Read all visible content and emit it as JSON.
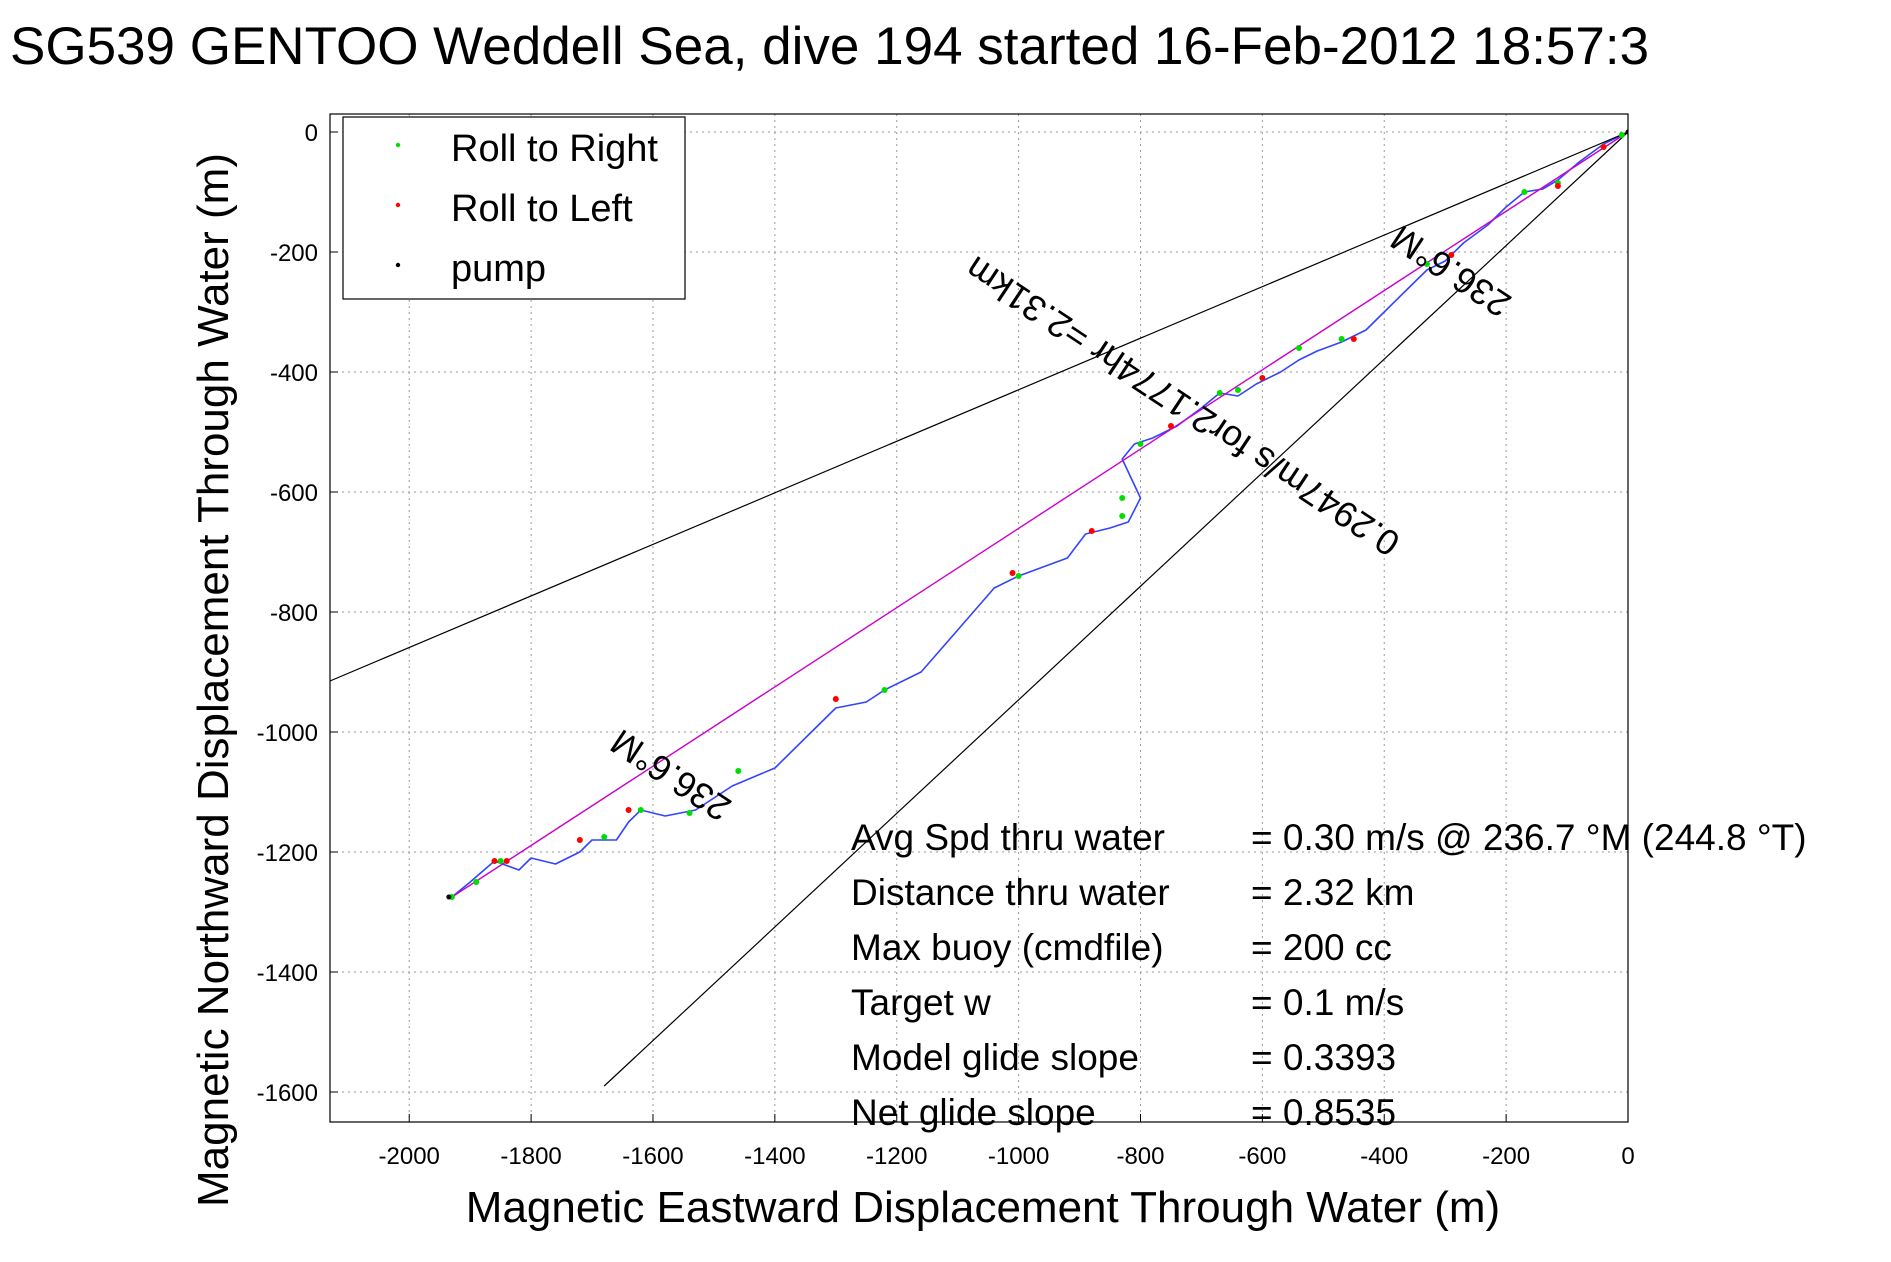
{
  "chart_data": {
    "type": "line",
    "title": "SG539 GENTOO Weddell Sea, dive 194 started 16-Feb-2012 18:57:3",
    "xlabel": "Magnetic Eastward Displacement Through Water (m)",
    "ylabel": "Magnetic Northward Displacement Through Water (m)",
    "xlim": [
      -2130,
      0
    ],
    "ylim": [
      -1650,
      30
    ],
    "xticks": [
      -2000,
      -1800,
      -1600,
      -1400,
      -1200,
      -1000,
      -800,
      -600,
      -400,
      -200,
      0
    ],
    "yticks": [
      0,
      -200,
      -400,
      -600,
      -800,
      -1000,
      -1200,
      -1400,
      -1600
    ],
    "grid": true,
    "legend_position": "top-left",
    "legend": [
      {
        "label": "Roll to Right",
        "color": "#00dd00"
      },
      {
        "label": "Roll to Left",
        "color": "#ff0000"
      },
      {
        "label": "pump",
        "color": "#000000"
      }
    ],
    "colors": {
      "track": "#3344ff",
      "heading": "#cc00cc",
      "cone": "#000000"
    },
    "series": [
      {
        "role": "track",
        "x": [
          0,
          -40,
          -80,
          -115,
          -140,
          -170,
          -200,
          -230,
          -270,
          -300,
          -330,
          -360,
          -400,
          -430,
          -470,
          -510,
          -540,
          -570,
          -610,
          -640,
          -670,
          -700,
          -740,
          -780,
          -810,
          -830,
          -800,
          -820,
          -850,
          -890,
          -920,
          -1000,
          -1040,
          -1100,
          -1160,
          -1220,
          -1250,
          -1300,
          -1340,
          -1400,
          -1470,
          -1530,
          -1580,
          -1620,
          -1640,
          -1660,
          -1700,
          -1720,
          -1760,
          -1800,
          -1820,
          -1860,
          -1900,
          -1930
        ],
        "y": [
          0,
          -20,
          -50,
          -80,
          -95,
          -100,
          -125,
          -155,
          -185,
          -215,
          -230,
          -260,
          -300,
          -330,
          -350,
          -365,
          -380,
          -400,
          -420,
          -440,
          -435,
          -460,
          -490,
          -510,
          -520,
          -545,
          -610,
          -650,
          -660,
          -670,
          -710,
          -740,
          -760,
          -830,
          -900,
          -930,
          -950,
          -960,
          -1000,
          -1060,
          -1090,
          -1130,
          -1140,
          -1130,
          -1150,
          -1180,
          -1180,
          -1200,
          -1220,
          -1210,
          -1230,
          -1215,
          -1250,
          -1275
        ]
      },
      {
        "role": "heading-line",
        "x": [
          0,
          -1930
        ],
        "y": [
          0,
          -1275
        ]
      },
      {
        "role": "cone-upper",
        "x": [
          0,
          -2130
        ],
        "y": [
          0,
          -915
        ]
      },
      {
        "role": "cone-lower",
        "x": [
          0,
          -1680
        ],
        "y": [
          0,
          -1590
        ]
      }
    ],
    "roll_right_points": [
      [
        -10,
        -5
      ],
      [
        -115,
        -85
      ],
      [
        -170,
        -100
      ],
      [
        -330,
        -220
      ],
      [
        -470,
        -345
      ],
      [
        -540,
        -360
      ],
      [
        -640,
        -430
      ],
      [
        -670,
        -435
      ],
      [
        -800,
        -520
      ],
      [
        -830,
        -610
      ],
      [
        -830,
        -640
      ],
      [
        -1000,
        -740
      ],
      [
        -1220,
        -930
      ],
      [
        -1460,
        -1065
      ],
      [
        -1540,
        -1135
      ],
      [
        -1620,
        -1130
      ],
      [
        -1680,
        -1175
      ],
      [
        -1850,
        -1215
      ],
      [
        -1890,
        -1250
      ],
      [
        -1930,
        -1275
      ]
    ],
    "roll_left_points": [
      [
        -40,
        -25
      ],
      [
        -115,
        -90
      ],
      [
        -290,
        -205
      ],
      [
        -450,
        -345
      ],
      [
        -600,
        -410
      ],
      [
        -750,
        -490
      ],
      [
        -880,
        -665
      ],
      [
        -1010,
        -735
      ],
      [
        -1300,
        -945
      ],
      [
        -1640,
        -1130
      ],
      [
        -1720,
        -1180
      ],
      [
        -1840,
        -1215
      ],
      [
        -1860,
        -1215
      ]
    ],
    "pump_points": [
      [
        0,
        0
      ],
      [
        -1935,
        -1275
      ]
    ],
    "annotations": {
      "heading_near": "236.6°M",
      "heading_far": "236.6°M",
      "speed": "0.2947m/s for2.1774hr =2.31km"
    },
    "stats": [
      {
        "label": "Avg Spd thru water",
        "value": "=  0.30 m/s @ 236.7 °M (244.8 °T)"
      },
      {
        "label": "Distance thru water",
        "value": "=  2.32 km"
      },
      {
        "label": "Max buoy (cmdfile)",
        "value": "= 200 cc"
      },
      {
        "label": "Target w",
        "value": "= 0.1 m/s"
      },
      {
        "label": "Model glide slope",
        "value": "= 0.3393"
      },
      {
        "label": "Net glide slope",
        "value": "= 0.8535"
      }
    ]
  }
}
